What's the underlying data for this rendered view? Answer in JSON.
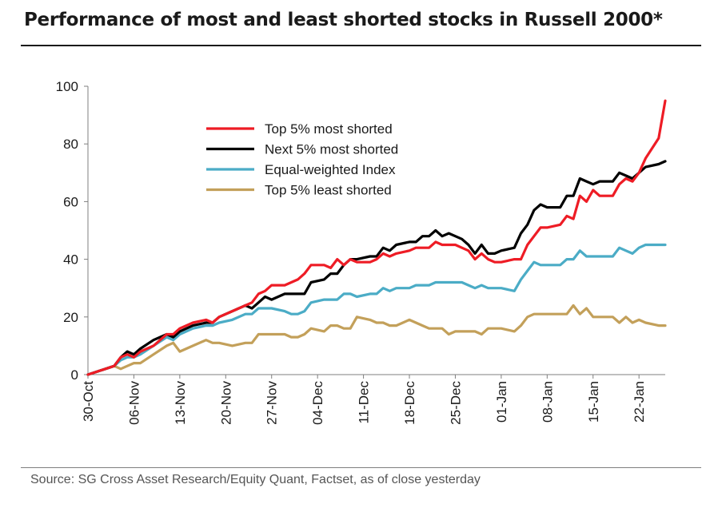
{
  "chart_data": {
    "type": "line",
    "title": "Performance of most and least shorted stocks in Russell 2000*",
    "xlabel": "",
    "ylabel": "",
    "ylim": [
      0,
      100
    ],
    "yticks": [
      0,
      20,
      40,
      60,
      80,
      100
    ],
    "xlim": [
      0,
      88
    ],
    "x_ticks": [
      {
        "label": "30-Oct",
        "x": 0
      },
      {
        "label": "06-Nov",
        "x": 7
      },
      {
        "label": "13-Nov",
        "x": 14
      },
      {
        "label": "20-Nov",
        "x": 21
      },
      {
        "label": "27-Nov",
        "x": 28
      },
      {
        "label": "04-Dec",
        "x": 35
      },
      {
        "label": "11-Dec",
        "x": 42
      },
      {
        "label": "18-Dec",
        "x": 49
      },
      {
        "label": "25-Dec",
        "x": 56
      },
      {
        "label": "01-Jan",
        "x": 63
      },
      {
        "label": "08-Jan",
        "x": 70
      },
      {
        "label": "15-Jan",
        "x": 77
      },
      {
        "label": "22-Jan",
        "x": 84
      }
    ],
    "grid": false,
    "legend_placement": "top-left-center",
    "series": [
      {
        "name": "Top 5% most shorted",
        "color": "#ee1c25",
        "points": [
          [
            0,
            0
          ],
          [
            4,
            3
          ],
          [
            5,
            6
          ],
          [
            6,
            7
          ],
          [
            7,
            6
          ],
          [
            8,
            8
          ],
          [
            10,
            10
          ],
          [
            12,
            14
          ],
          [
            13,
            14
          ],
          [
            14,
            16
          ],
          [
            16,
            18
          ],
          [
            18,
            19
          ],
          [
            19,
            18
          ],
          [
            20,
            20
          ],
          [
            22,
            22
          ],
          [
            24,
            24
          ],
          [
            25,
            25
          ],
          [
            26,
            28
          ],
          [
            27,
            29
          ],
          [
            28,
            31
          ],
          [
            30,
            31
          ],
          [
            31,
            32
          ],
          [
            32,
            33
          ],
          [
            33,
            35
          ],
          [
            34,
            38
          ],
          [
            36,
            38
          ],
          [
            37,
            37
          ],
          [
            38,
            40
          ],
          [
            39,
            38
          ],
          [
            40,
            40
          ],
          [
            41,
            39
          ],
          [
            43,
            39
          ],
          [
            44,
            40
          ],
          [
            45,
            42
          ],
          [
            46,
            41
          ],
          [
            47,
            42
          ],
          [
            49,
            43
          ],
          [
            50,
            44
          ],
          [
            51,
            44
          ],
          [
            52,
            44
          ],
          [
            53,
            46
          ],
          [
            54,
            45
          ],
          [
            55,
            45
          ],
          [
            56,
            45
          ],
          [
            57,
            44
          ],
          [
            58,
            43
          ],
          [
            59,
            40
          ],
          [
            60,
            42
          ],
          [
            61,
            40
          ],
          [
            62,
            39
          ],
          [
            63,
            39
          ],
          [
            65,
            40
          ],
          [
            66,
            40
          ],
          [
            67,
            45
          ],
          [
            68,
            48
          ],
          [
            69,
            51
          ],
          [
            70,
            51
          ],
          [
            72,
            52
          ],
          [
            73,
            55
          ],
          [
            74,
            54
          ],
          [
            75,
            62
          ],
          [
            76,
            60
          ],
          [
            77,
            64
          ],
          [
            78,
            62
          ],
          [
            80,
            62
          ],
          [
            81,
            66
          ],
          [
            82,
            68
          ],
          [
            83,
            67
          ],
          [
            84,
            70
          ],
          [
            85,
            75
          ],
          [
            87,
            82
          ],
          [
            88,
            95
          ]
        ]
      },
      {
        "name": "Next 5% most shorted",
        "color": "#000000",
        "points": [
          [
            0,
            0
          ],
          [
            4,
            3
          ],
          [
            5,
            6
          ],
          [
            6,
            8
          ],
          [
            7,
            7
          ],
          [
            8,
            9
          ],
          [
            10,
            12
          ],
          [
            12,
            14
          ],
          [
            13,
            13
          ],
          [
            14,
            15
          ],
          [
            16,
            17
          ],
          [
            18,
            18
          ],
          [
            19,
            18
          ],
          [
            20,
            20
          ],
          [
            22,
            22
          ],
          [
            24,
            24
          ],
          [
            25,
            23
          ],
          [
            26,
            25
          ],
          [
            27,
            27
          ],
          [
            28,
            26
          ],
          [
            30,
            28
          ],
          [
            31,
            28
          ],
          [
            32,
            28
          ],
          [
            33,
            28
          ],
          [
            34,
            32
          ],
          [
            36,
            33
          ],
          [
            37,
            35
          ],
          [
            38,
            35
          ],
          [
            39,
            38
          ],
          [
            40,
            40
          ],
          [
            41,
            40
          ],
          [
            43,
            41
          ],
          [
            44,
            41
          ],
          [
            45,
            44
          ],
          [
            46,
            43
          ],
          [
            47,
            45
          ],
          [
            49,
            46
          ],
          [
            50,
            46
          ],
          [
            51,
            48
          ],
          [
            52,
            48
          ],
          [
            53,
            50
          ],
          [
            54,
            48
          ],
          [
            55,
            49
          ],
          [
            56,
            48
          ],
          [
            57,
            47
          ],
          [
            58,
            45
          ],
          [
            59,
            42
          ],
          [
            60,
            45
          ],
          [
            61,
            42
          ],
          [
            62,
            42
          ],
          [
            63,
            43
          ],
          [
            65,
            44
          ],
          [
            66,
            49
          ],
          [
            67,
            52
          ],
          [
            68,
            57
          ],
          [
            69,
            59
          ],
          [
            70,
            58
          ],
          [
            72,
            58
          ],
          [
            73,
            62
          ],
          [
            74,
            62
          ],
          [
            75,
            68
          ],
          [
            76,
            67
          ],
          [
            77,
            66
          ],
          [
            78,
            67
          ],
          [
            80,
            67
          ],
          [
            81,
            70
          ],
          [
            82,
            69
          ],
          [
            83,
            68
          ],
          [
            84,
            70
          ],
          [
            85,
            72
          ],
          [
            87,
            73
          ],
          [
            88,
            74
          ]
        ]
      },
      {
        "name": "Equal-weighted Index",
        "color": "#4bacc6",
        "points": [
          [
            0,
            0
          ],
          [
            4,
            3
          ],
          [
            5,
            5
          ],
          [
            6,
            6
          ],
          [
            7,
            6
          ],
          [
            8,
            7
          ],
          [
            10,
            10
          ],
          [
            12,
            13
          ],
          [
            13,
            12
          ],
          [
            14,
            14
          ],
          [
            16,
            16
          ],
          [
            18,
            17
          ],
          [
            19,
            17
          ],
          [
            20,
            18
          ],
          [
            22,
            19
          ],
          [
            24,
            21
          ],
          [
            25,
            21
          ],
          [
            26,
            23
          ],
          [
            27,
            23
          ],
          [
            28,
            23
          ],
          [
            30,
            22
          ],
          [
            31,
            21
          ],
          [
            32,
            21
          ],
          [
            33,
            22
          ],
          [
            34,
            25
          ],
          [
            36,
            26
          ],
          [
            37,
            26
          ],
          [
            38,
            26
          ],
          [
            39,
            28
          ],
          [
            40,
            28
          ],
          [
            41,
            27
          ],
          [
            43,
            28
          ],
          [
            44,
            28
          ],
          [
            45,
            30
          ],
          [
            46,
            29
          ],
          [
            47,
            30
          ],
          [
            49,
            30
          ],
          [
            50,
            31
          ],
          [
            51,
            31
          ],
          [
            52,
            31
          ],
          [
            53,
            32
          ],
          [
            54,
            32
          ],
          [
            55,
            32
          ],
          [
            56,
            32
          ],
          [
            57,
            32
          ],
          [
            58,
            31
          ],
          [
            59,
            30
          ],
          [
            60,
            31
          ],
          [
            61,
            30
          ],
          [
            62,
            30
          ],
          [
            63,
            30
          ],
          [
            65,
            29
          ],
          [
            66,
            33
          ],
          [
            67,
            36
          ],
          [
            68,
            39
          ],
          [
            69,
            38
          ],
          [
            70,
            38
          ],
          [
            72,
            38
          ],
          [
            73,
            40
          ],
          [
            74,
            40
          ],
          [
            75,
            43
          ],
          [
            76,
            41
          ],
          [
            77,
            41
          ],
          [
            78,
            41
          ],
          [
            80,
            41
          ],
          [
            81,
            44
          ],
          [
            82,
            43
          ],
          [
            83,
            42
          ],
          [
            84,
            44
          ],
          [
            85,
            45
          ],
          [
            87,
            45
          ],
          [
            88,
            45
          ]
        ]
      },
      {
        "name": "Top 5% least shorted",
        "color": "#c3a05a",
        "points": [
          [
            0,
            0
          ],
          [
            4,
            3
          ],
          [
            5,
            2
          ],
          [
            6,
            3
          ],
          [
            7,
            4
          ],
          [
            8,
            4
          ],
          [
            10,
            7
          ],
          [
            12,
            10
          ],
          [
            13,
            11
          ],
          [
            14,
            8
          ],
          [
            16,
            10
          ],
          [
            18,
            12
          ],
          [
            19,
            11
          ],
          [
            20,
            11
          ],
          [
            22,
            10
          ],
          [
            24,
            11
          ],
          [
            25,
            11
          ],
          [
            26,
            14
          ],
          [
            27,
            14
          ],
          [
            28,
            14
          ],
          [
            30,
            14
          ],
          [
            31,
            13
          ],
          [
            32,
            13
          ],
          [
            33,
            14
          ],
          [
            34,
            16
          ],
          [
            36,
            15
          ],
          [
            37,
            17
          ],
          [
            38,
            17
          ],
          [
            39,
            16
          ],
          [
            40,
            16
          ],
          [
            41,
            20
          ],
          [
            43,
            19
          ],
          [
            44,
            18
          ],
          [
            45,
            18
          ],
          [
            46,
            17
          ],
          [
            47,
            17
          ],
          [
            49,
            19
          ],
          [
            50,
            18
          ],
          [
            51,
            17
          ],
          [
            52,
            16
          ],
          [
            53,
            16
          ],
          [
            54,
            16
          ],
          [
            55,
            14
          ],
          [
            56,
            15
          ],
          [
            57,
            15
          ],
          [
            58,
            15
          ],
          [
            59,
            15
          ],
          [
            60,
            14
          ],
          [
            61,
            16
          ],
          [
            62,
            16
          ],
          [
            63,
            16
          ],
          [
            65,
            15
          ],
          [
            66,
            17
          ],
          [
            67,
            20
          ],
          [
            68,
            21
          ],
          [
            69,
            21
          ],
          [
            70,
            21
          ],
          [
            72,
            21
          ],
          [
            73,
            21
          ],
          [
            74,
            24
          ],
          [
            75,
            21
          ],
          [
            76,
            23
          ],
          [
            77,
            20
          ],
          [
            78,
            20
          ],
          [
            80,
            20
          ],
          [
            81,
            18
          ],
          [
            82,
            20
          ],
          [
            83,
            18
          ],
          [
            84,
            19
          ],
          [
            85,
            18
          ],
          [
            87,
            17
          ],
          [
            88,
            17
          ]
        ]
      }
    ]
  },
  "footer": {
    "source": "Source: SG Cross Asset Research/Equity Quant, Factset, as of close yesterday"
  }
}
